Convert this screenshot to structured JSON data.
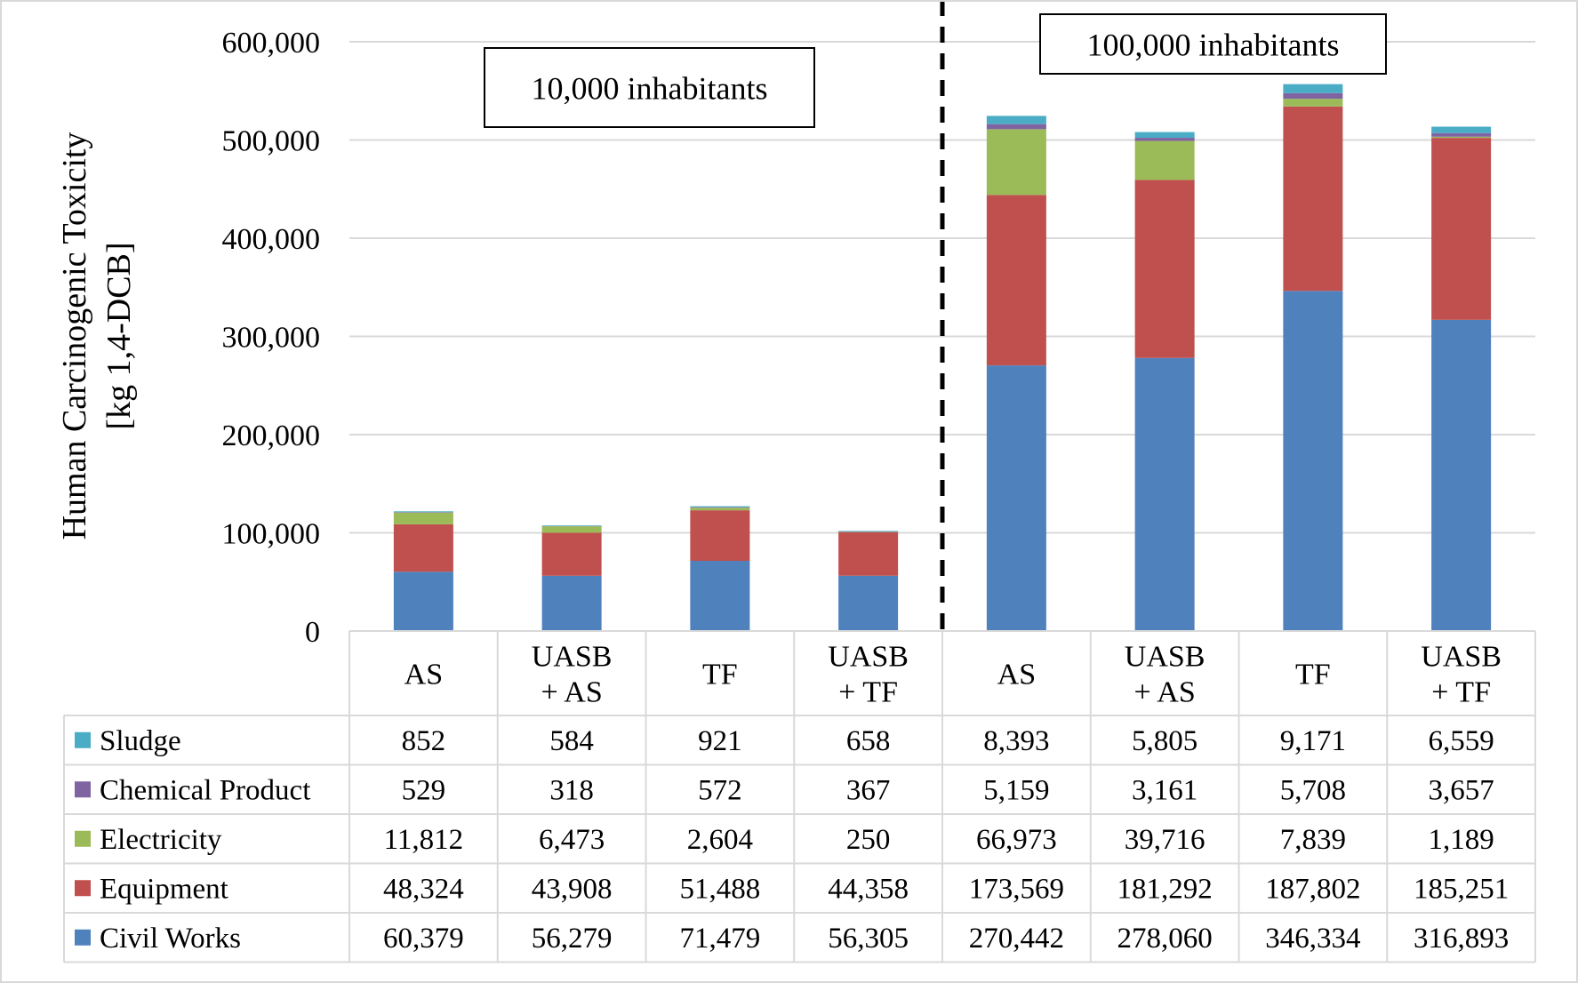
{
  "chart_data": {
    "type": "bar",
    "stacked": true,
    "ylabel": [
      "Human Carcinogenic Toxicity",
      "[kg 1,4-DCB]"
    ],
    "ylim": [
      0,
      600000
    ],
    "yticks": [
      "0",
      "100,000",
      "200,000",
      "300,000",
      "400,000",
      "500,000",
      "600,000"
    ],
    "yticks_values": [
      0,
      100000,
      200000,
      300000,
      400000,
      500000,
      600000
    ],
    "grid": true,
    "categories": [
      [
        "AS"
      ],
      [
        "UASB",
        "+ AS"
      ],
      [
        "TF"
      ],
      [
        "UASB",
        "+ TF"
      ],
      [
        "AS"
      ],
      [
        "UASB",
        "+ AS"
      ],
      [
        "TF"
      ],
      [
        "UASB",
        "+ TF"
      ]
    ],
    "groups": [
      {
        "label": "10,000 inhabitants",
        "span": [
          0,
          3
        ]
      },
      {
        "label": "100,000 inhabitants",
        "span": [
          4,
          7
        ]
      }
    ],
    "divider": "dashed line between the two groups",
    "series": [
      {
        "name": "Civil Works",
        "color": "#4f81bd",
        "values": [
          60379,
          56279,
          71479,
          56305,
          270442,
          278060,
          346334,
          316893
        ],
        "labels": [
          "60,379",
          "56,279",
          "71,479",
          "56,305",
          "270,442",
          "278,060",
          "346,334",
          "316,893"
        ]
      },
      {
        "name": "Equipment",
        "color": "#c0504d",
        "values": [
          48324,
          43908,
          51488,
          44358,
          173569,
          181292,
          187802,
          185251
        ],
        "labels": [
          "48,324",
          "43,908",
          "51,488",
          "44,358",
          "173,569",
          "181,292",
          "187,802",
          "185,251"
        ]
      },
      {
        "name": "Electricity",
        "color": "#9bbb59",
        "values": [
          11812,
          6473,
          2604,
          250,
          66973,
          39716,
          7839,
          1189
        ],
        "labels": [
          "11,812",
          "6,473",
          "2,604",
          "250",
          "66,973",
          "39,716",
          "7,839",
          "1,189"
        ]
      },
      {
        "name": "Chemical Product",
        "color": "#8064a2",
        "values": [
          529,
          318,
          572,
          367,
          5159,
          3161,
          5708,
          3657
        ],
        "labels": [
          "529",
          "318",
          "572",
          "367",
          "5,159",
          "3,161",
          "5,708",
          "3,657"
        ]
      },
      {
        "name": "Sludge",
        "color": "#4bacc6",
        "values": [
          852,
          584,
          921,
          658,
          8393,
          5805,
          9171,
          6559
        ],
        "labels": [
          "852",
          "584",
          "921",
          "658",
          "8,393",
          "5,805",
          "9,171",
          "6,559"
        ]
      }
    ],
    "table_row_order": [
      "Sludge",
      "Chemical Product",
      "Electricity",
      "Equipment",
      "Civil Works"
    ],
    "legend": "data table below chart"
  },
  "colors": {
    "grid": "#d9d9d9",
    "table_border": "#d9d9d9",
    "text": "#000000",
    "divider": "#000000"
  }
}
